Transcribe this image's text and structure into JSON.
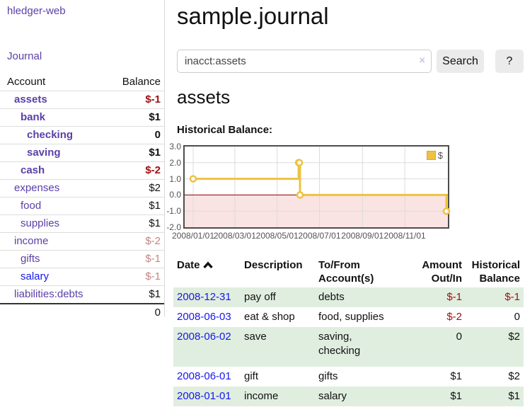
{
  "sidebar": {
    "brand": "hledger-web",
    "journal_label": "Journal",
    "accounts": {
      "header_account": "Account",
      "header_balance": "Balance",
      "rows": [
        {
          "name": "assets",
          "balance": "$-1"
        },
        {
          "name": "bank",
          "balance": "$1"
        },
        {
          "name": "checking",
          "balance": "0"
        },
        {
          "name": "saving",
          "balance": "$1"
        },
        {
          "name": "cash",
          "balance": "$-2"
        },
        {
          "name": "expenses",
          "balance": "$2"
        },
        {
          "name": "food",
          "balance": "$1"
        },
        {
          "name": "supplies",
          "balance": "$1"
        },
        {
          "name": "income",
          "balance": "$-2"
        },
        {
          "name": "gifts",
          "balance": "$-1"
        },
        {
          "name": "salary",
          "balance": "$-1"
        },
        {
          "name": "liabilities:debts",
          "balance": "$1"
        }
      ],
      "total": "0"
    }
  },
  "main": {
    "title": "sample.journal",
    "search": {
      "value": "inacct:assets",
      "clear_icon": "×",
      "button_label": "Search",
      "help_label": "?"
    },
    "account_heading": "assets",
    "chart_label": "Historical Balance:",
    "register": {
      "headers": {
        "date": "Date",
        "description": "Description",
        "accounts": "To/From Account(s)",
        "amount": "Amount Out/In",
        "historical": "Historical Balance"
      },
      "sort": "date ascending",
      "rows": [
        {
          "date": "2008-12-31",
          "description": "pay off",
          "accounts": "debts",
          "amount": "$-1",
          "historical": "$-1"
        },
        {
          "date": "2008-06-03",
          "description": "eat & shop",
          "accounts": "food, supplies",
          "amount": "$-2",
          "historical": "0"
        },
        {
          "date": "2008-06-02",
          "description": "save",
          "accounts": "saving, checking",
          "amount": "0",
          "historical": "$2"
        },
        {
          "date": "2008-06-01",
          "description": "gift",
          "accounts": "gifts",
          "amount": "$1",
          "historical": "$2"
        },
        {
          "date": "2008-01-01",
          "description": "income",
          "accounts": "salary",
          "amount": "$1",
          "historical": "$1"
        }
      ]
    }
  },
  "chart_data": {
    "type": "line",
    "style": "step",
    "title": "Historical Balance:",
    "series": [
      {
        "name": "$",
        "color": "#edc240",
        "points": [
          [
            "2008-01-01",
            1
          ],
          [
            "2008-06-01",
            2
          ],
          [
            "2008-06-02",
            2
          ],
          [
            "2008-06-03",
            0
          ],
          [
            "2008-12-31",
            -1
          ]
        ]
      }
    ],
    "x_ticks": [
      "2008/01/01",
      "2008/03/01",
      "2008/05/01",
      "2008/07/01",
      "2008/09/01",
      "2008/11/01"
    ],
    "y_ticks": [
      "3.0",
      "2.0",
      "1.0",
      "0.0",
      "-1.0",
      "-2.0"
    ],
    "ylim": [
      -2,
      3
    ],
    "xlim": [
      "2008-01-01",
      "2008-12-31"
    ],
    "grid": true,
    "legend_position": "top-right",
    "negative_region_color": "#fae3e3",
    "zero_line_color": "#8b0000",
    "grid_color": "#dcdcdc"
  },
  "icons": {
    "sort_asc": "chevron-up",
    "search_clear": "x-mark"
  },
  "colors": {
    "link_purple": "#5b3fa8",
    "link_blue": "#1717ee",
    "negative_red": "#a01010",
    "faded_red": "#c48484",
    "row_green": "#e0eedf",
    "series_gold": "#edc240",
    "chart_border": "#4d4d4d"
  }
}
